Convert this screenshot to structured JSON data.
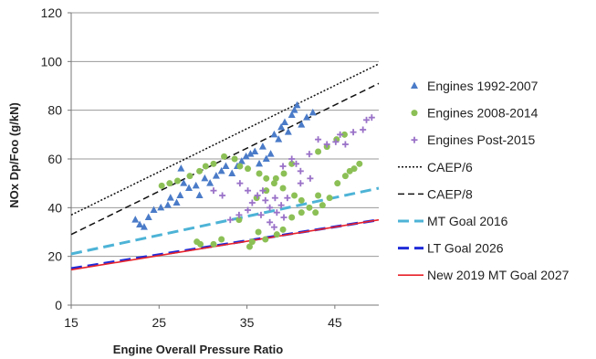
{
  "chart_data": {
    "type": "scatter",
    "xlabel": "Engine Overall Pressure Ratio",
    "ylabel": "NOx Dp/Foo (g/kN)",
    "xlim": [
      15,
      50
    ],
    "ylim": [
      0,
      120
    ],
    "xticks": [
      15,
      25,
      35,
      45
    ],
    "yticks": [
      0,
      20,
      40,
      60,
      80,
      100,
      120
    ],
    "grid": "horizontal",
    "legend_position": "right",
    "scatter_series": [
      {
        "name": "Engines 1992-2007",
        "marker": "triangle",
        "color": "#4a7bc8",
        "points": [
          [
            22.3,
            35
          ],
          [
            22.8,
            33
          ],
          [
            23.3,
            32
          ],
          [
            23.8,
            36
          ],
          [
            24.4,
            39
          ],
          [
            25.2,
            40
          ],
          [
            26,
            41
          ],
          [
            26.3,
            44
          ],
          [
            27,
            42
          ],
          [
            27.4,
            45
          ],
          [
            27.8,
            50
          ],
          [
            28.4,
            48
          ],
          [
            29.2,
            49
          ],
          [
            29.6,
            45
          ],
          [
            30.2,
            52
          ],
          [
            30.8,
            50
          ],
          [
            31.5,
            53
          ],
          [
            32.1,
            55
          ],
          [
            32.6,
            57
          ],
          [
            33.3,
            54
          ],
          [
            33.9,
            57
          ],
          [
            34.4,
            59
          ],
          [
            34.9,
            61
          ],
          [
            35.4,
            62
          ],
          [
            35.9,
            63
          ],
          [
            36.4,
            58
          ],
          [
            36.8,
            65
          ],
          [
            37.2,
            60
          ],
          [
            37.7,
            62
          ],
          [
            38.1,
            70
          ],
          [
            38.6,
            68
          ],
          [
            38.9,
            73
          ],
          [
            39.3,
            75
          ],
          [
            39.7,
            71
          ],
          [
            40.1,
            78
          ],
          [
            40.4,
            80
          ],
          [
            40.7,
            82
          ],
          [
            41.2,
            74
          ],
          [
            41.8,
            77
          ],
          [
            42.5,
            79
          ],
          [
            27.5,
            56
          ]
        ]
      },
      {
        "name": "Engines 2008-2014",
        "marker": "circle",
        "color": "#8cc056",
        "points": [
          [
            25.3,
            49
          ],
          [
            26.2,
            50
          ],
          [
            27.1,
            51
          ],
          [
            28.5,
            53
          ],
          [
            29.6,
            55
          ],
          [
            30.3,
            57
          ],
          [
            31.2,
            58
          ],
          [
            32.4,
            61
          ],
          [
            33.6,
            60
          ],
          [
            34.2,
            57
          ],
          [
            35.1,
            56
          ],
          [
            36.4,
            54
          ],
          [
            37.2,
            52
          ],
          [
            38.1,
            50
          ],
          [
            39.1,
            48
          ],
          [
            40.4,
            45
          ],
          [
            41.2,
            43
          ],
          [
            42.1,
            40
          ],
          [
            42.8,
            38
          ],
          [
            43.6,
            41
          ],
          [
            44.4,
            44
          ],
          [
            45.3,
            50
          ],
          [
            46.2,
            53
          ],
          [
            46.7,
            55
          ],
          [
            47.2,
            56
          ],
          [
            47.8,
            58
          ],
          [
            43.1,
            63
          ],
          [
            44.1,
            65
          ],
          [
            45.2,
            68
          ],
          [
            46.1,
            70
          ],
          [
            29.3,
            26
          ],
          [
            29.7,
            25
          ],
          [
            31.2,
            25
          ],
          [
            32.1,
            27
          ],
          [
            35.3,
            24
          ],
          [
            35.6,
            26
          ],
          [
            36.3,
            30
          ],
          [
            37.1,
            27
          ],
          [
            38.4,
            29
          ],
          [
            39.1,
            31
          ],
          [
            40.1,
            36
          ],
          [
            41.2,
            38
          ],
          [
            43.1,
            45
          ],
          [
            34.1,
            35
          ],
          [
            36.1,
            44
          ],
          [
            37.2,
            47
          ],
          [
            38.3,
            52
          ],
          [
            39.2,
            54
          ],
          [
            40.1,
            58
          ]
        ]
      },
      {
        "name": "Engines Post-2015",
        "marker": "plus",
        "color": "#9a72c8",
        "points": [
          [
            33.1,
            35
          ],
          [
            34.1,
            37
          ],
          [
            35.1,
            39
          ],
          [
            35.6,
            42
          ],
          [
            36.2,
            45
          ],
          [
            36.8,
            47
          ],
          [
            37.1,
            43
          ],
          [
            37.6,
            40
          ],
          [
            38.2,
            44
          ],
          [
            38.4,
            38
          ],
          [
            38.9,
            41
          ],
          [
            39.2,
            36
          ],
          [
            39.6,
            44
          ],
          [
            40.1,
            60
          ],
          [
            40.6,
            58
          ],
          [
            41.1,
            55
          ],
          [
            42.1,
            62
          ],
          [
            43.1,
            68
          ],
          [
            44.1,
            66
          ],
          [
            45.1,
            67
          ],
          [
            45.6,
            70
          ],
          [
            46.2,
            66
          ],
          [
            47.1,
            71
          ],
          [
            48.2,
            72
          ],
          [
            48.6,
            76
          ],
          [
            49.2,
            77
          ],
          [
            37.6,
            34
          ],
          [
            38.1,
            32
          ],
          [
            36.6,
            37
          ],
          [
            35.1,
            47
          ],
          [
            34.2,
            50
          ],
          [
            39.1,
            57
          ],
          [
            41.1,
            50
          ],
          [
            42.2,
            52
          ],
          [
            31.2,
            47
          ],
          [
            32.2,
            45
          ]
        ]
      }
    ],
    "line_series": [
      {
        "name": "CAEP/6",
        "style": "dotted",
        "color": "#111111",
        "points": [
          [
            15,
            37
          ],
          [
            50,
            99
          ]
        ]
      },
      {
        "name": "CAEP/8",
        "style": "dashed",
        "color": "#111111",
        "points": [
          [
            15,
            29
          ],
          [
            50,
            91
          ]
        ]
      },
      {
        "name": "MT Goal 2016",
        "style": "longdash",
        "color": "#4db3d6",
        "points": [
          [
            15,
            21
          ],
          [
            50,
            48
          ]
        ]
      },
      {
        "name": "LT Goal 2026",
        "style": "longdash",
        "color": "#1f2bd8",
        "points": [
          [
            15,
            15
          ],
          [
            50,
            35
          ]
        ]
      },
      {
        "name": "New 2019 MT Goal 2027",
        "style": "solid",
        "color": "#e8222a",
        "points": [
          [
            15,
            14.5
          ],
          [
            50,
            35
          ]
        ]
      }
    ]
  }
}
